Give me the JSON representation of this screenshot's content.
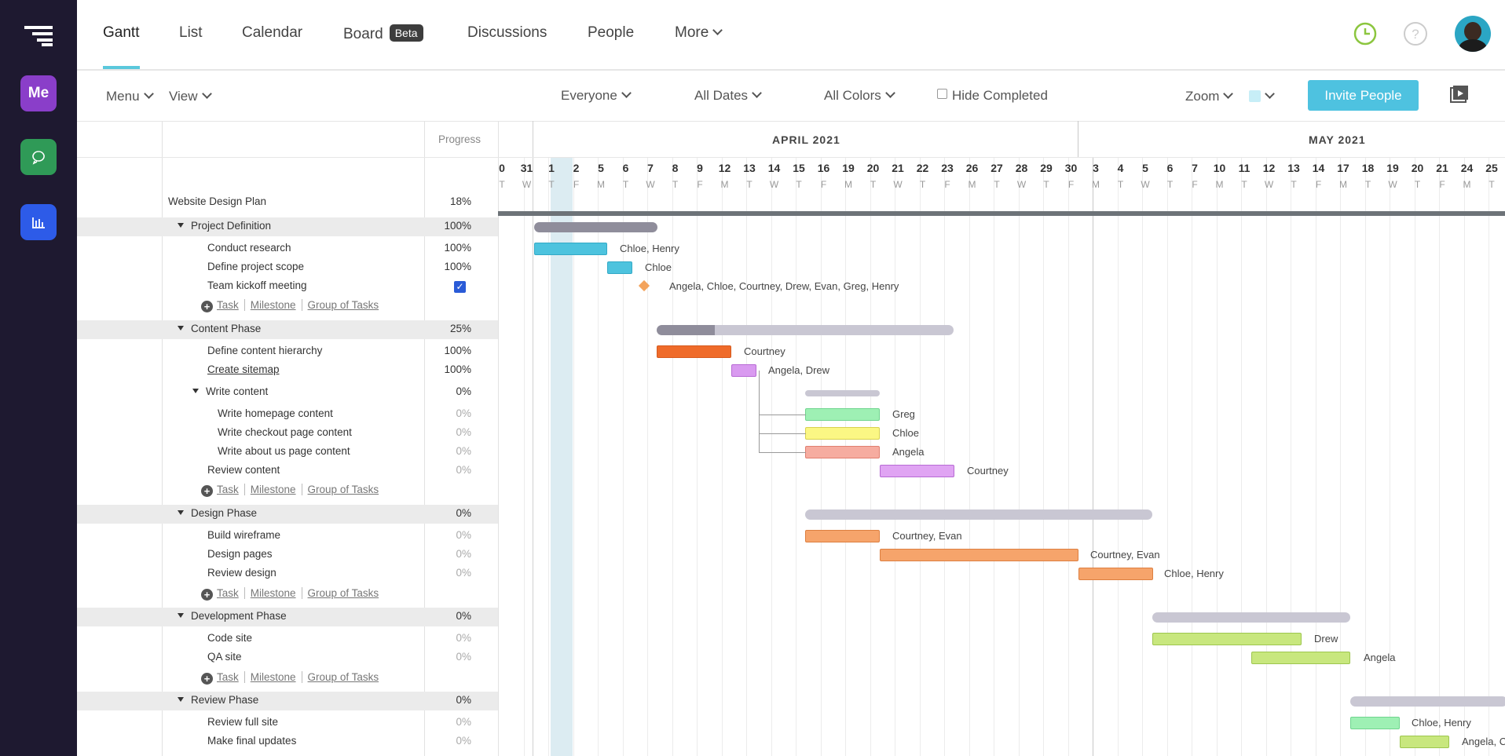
{
  "rail": {
    "me_label": "Me"
  },
  "tabs": [
    {
      "label": "Gantt"
    },
    {
      "label": "List"
    },
    {
      "label": "Calendar"
    },
    {
      "label": "Board"
    },
    {
      "label": "Discussions"
    },
    {
      "label": "People"
    },
    {
      "label": "More"
    }
  ],
  "beta_badge": "Beta",
  "toolbar": {
    "menu": "Menu",
    "view": "View",
    "everyone": "Everyone",
    "all_dates": "All Dates",
    "all_colors": "All Colors",
    "hide_completed": "Hide Completed",
    "zoom": "Zoom",
    "invite": "Invite People"
  },
  "grid": {
    "progress_header": "Progress",
    "rows": [
      {
        "name": "Website Design Plan",
        "pct": "18%"
      },
      {
        "name": "Project Definition",
        "pct": "100%"
      },
      {
        "name": "Conduct research",
        "pct": "100%"
      },
      {
        "name": "Define project scope",
        "pct": "100%"
      },
      {
        "name": "Team kickoff meeting",
        "pct": ""
      },
      {
        "name": "Content Phase",
        "pct": "25%"
      },
      {
        "name": "Define content hierarchy",
        "pct": "100%"
      },
      {
        "name": "Create sitemap",
        "pct": "100%"
      },
      {
        "name": "Write content",
        "pct": "0%"
      },
      {
        "name": "Write homepage content",
        "pct": "0%"
      },
      {
        "name": "Write checkout page content",
        "pct": "0%"
      },
      {
        "name": "Write about us page content",
        "pct": "0%"
      },
      {
        "name": "Review content",
        "pct": "0%"
      },
      {
        "name": "Design Phase",
        "pct": "0%"
      },
      {
        "name": "Build wireframe",
        "pct": "0%"
      },
      {
        "name": "Design pages",
        "pct": "0%"
      },
      {
        "name": "Review design",
        "pct": "0%"
      },
      {
        "name": "Development Phase",
        "pct": "0%"
      },
      {
        "name": "Code site",
        "pct": "0%"
      },
      {
        "name": "QA site",
        "pct": "0%"
      },
      {
        "name": "Review Phase",
        "pct": "0%"
      },
      {
        "name": "Review full site",
        "pct": "0%"
      },
      {
        "name": "Make final updates",
        "pct": "0%"
      }
    ],
    "add": {
      "task": "Task",
      "milestone": "Milestone",
      "group": "Group of Tasks"
    }
  },
  "timeline": {
    "month1": "APRIL 2021",
    "month2": "MAY 2021",
    "days": [
      "0",
      "31",
      "1",
      "2",
      "5",
      "6",
      "7",
      "8",
      "9",
      "12",
      "13",
      "14",
      "15",
      "16",
      "19",
      "20",
      "21",
      "22",
      "23",
      "26",
      "27",
      "28",
      "29",
      "30",
      "3",
      "4",
      "5",
      "6",
      "7",
      "10",
      "11",
      "12",
      "13",
      "14",
      "17",
      "18",
      "19",
      "20",
      "21",
      "24",
      "25"
    ],
    "dows": [
      "T",
      "W",
      "T",
      "F",
      "M",
      "T",
      "W",
      "T",
      "F",
      "M",
      "T",
      "W",
      "T",
      "F",
      "M",
      "T",
      "W",
      "T",
      "F",
      "M",
      "T",
      "W",
      "T",
      "F",
      "M",
      "T",
      "W",
      "T",
      "F",
      "M",
      "T",
      "W",
      "T",
      "F",
      "M",
      "T",
      "W",
      "T",
      "F",
      "M",
      "T"
    ]
  },
  "assignees": {
    "research": "Chloe, Henry",
    "scope": "Chloe",
    "kickoff": "Angela, Chloe, Courtney, Drew, Evan, Greg, Henry",
    "hierarchy": "Courtney",
    "sitemap": "Angela, Drew",
    "homepage": "Greg",
    "checkout": "Chloe",
    "about": "Angela",
    "review_content": "Courtney",
    "wireframe": "Courtney, Evan",
    "design_pages": "Courtney, Evan",
    "review_design": "Chloe, Henry",
    "code": "Drew",
    "qa": "Angela",
    "review_full": "Chloe, Henry",
    "final": "Angela, C"
  },
  "colors": {
    "accent": "#4ec2e0",
    "rail": "#1e1930"
  }
}
